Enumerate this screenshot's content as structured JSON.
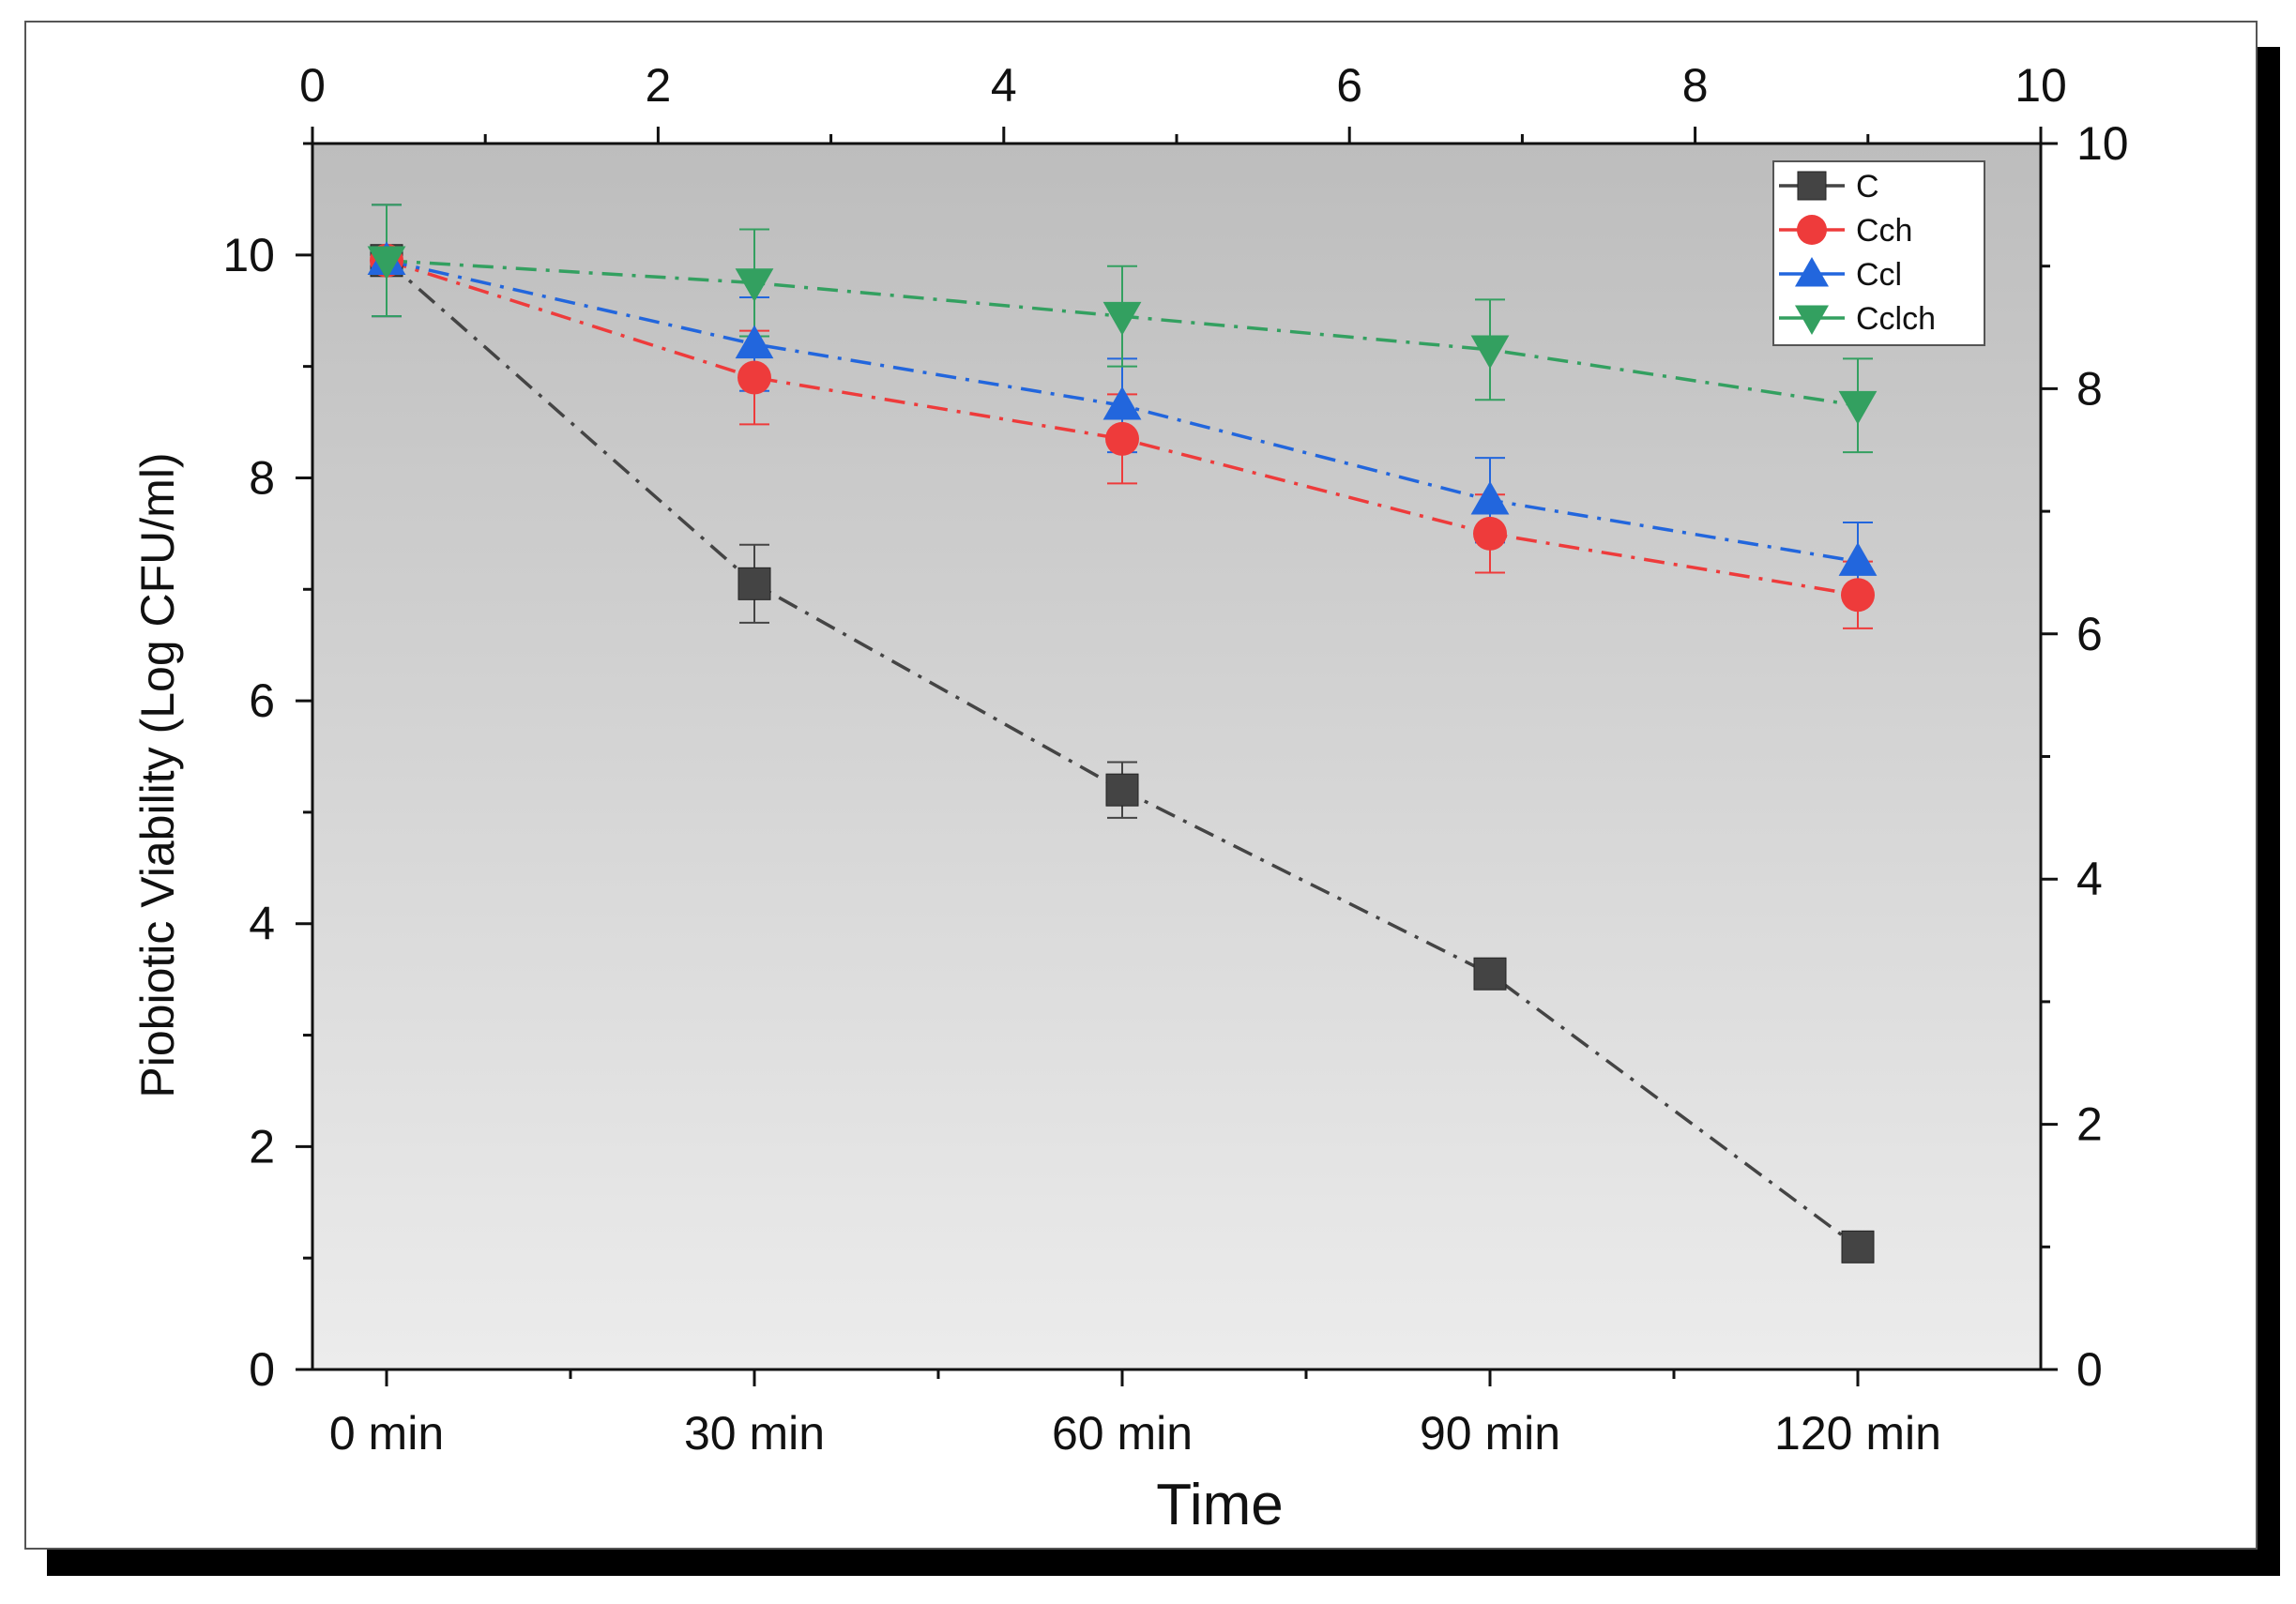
{
  "chart_data": {
    "type": "line",
    "title": "",
    "xlabel": "Time",
    "ylabel": "Piobiotic Viability (Log CFU/ml)",
    "categories": [
      "0 min",
      "30 min",
      "60 min",
      "90 min",
      "120 min"
    ],
    "ylim": [
      0,
      11
    ],
    "yticks": [
      0,
      2,
      4,
      6,
      8,
      10
    ],
    "top_axis": {
      "range": [
        0,
        10
      ],
      "ticks": [
        0,
        2,
        4,
        6,
        8,
        10
      ]
    },
    "right_axis": {
      "range": [
        0,
        10
      ],
      "ticks": [
        0,
        2,
        4,
        6,
        8,
        10
      ]
    },
    "line_style": "dash-dot",
    "legend_position": "top-right",
    "series": [
      {
        "name": "C",
        "color": "#444444",
        "marker": "square",
        "values": [
          9.95,
          7.05,
          5.2,
          3.55,
          1.1
        ],
        "errors": [
          0.5,
          0.35,
          0.25,
          0,
          0
        ]
      },
      {
        "name": "Cch",
        "color": "#ee3b3b",
        "marker": "circle",
        "values": [
          9.95,
          8.9,
          8.35,
          7.5,
          6.95
        ],
        "errors": [
          0.5,
          0.42,
          0.4,
          0.35,
          0.3
        ]
      },
      {
        "name": "Ccl",
        "color": "#2266dd",
        "marker": "triangle-up",
        "values": [
          9.95,
          9.2,
          8.65,
          7.8,
          7.25
        ],
        "errors": [
          0.5,
          0.42,
          0.42,
          0.38,
          0.35
        ]
      },
      {
        "name": "Cclch",
        "color": "#33a060",
        "marker": "triangle-down",
        "values": [
          9.95,
          9.75,
          9.45,
          9.15,
          8.65
        ],
        "errors": [
          0.5,
          0.48,
          0.45,
          0.45,
          0.42
        ]
      }
    ]
  }
}
